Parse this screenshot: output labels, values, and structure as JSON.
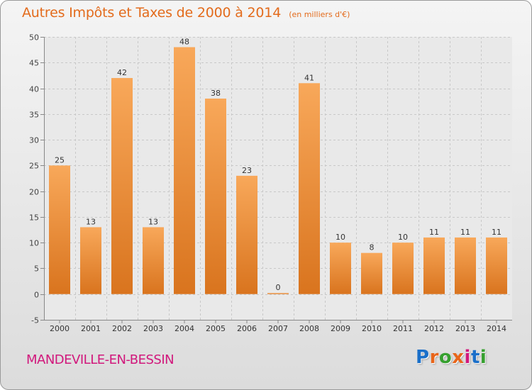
{
  "title": "Autres Impôts et Taxes de 2000 à 2014",
  "subtitle": "(en milliers d'€)",
  "town": "MANDEVILLE-EN-BESSIN",
  "logo": {
    "text": "Proxiti",
    "colors": [
      "#1a6fc9",
      "#e8651a",
      "#36a02f",
      "#e8651a",
      "#d1187c",
      "#1a6fc9",
      "#36a02f"
    ]
  },
  "colors": {
    "title": "#e36b1c",
    "town": "#d1187c",
    "bar_light": "#f8a85a",
    "bar_dark": "#d9741e",
    "grid": "#c8c8c8"
  },
  "chart_data": {
    "type": "bar",
    "categories": [
      "2000",
      "2001",
      "2002",
      "2003",
      "2004",
      "2005",
      "2006",
      "2007",
      "2008",
      "2009",
      "2010",
      "2011",
      "2012",
      "2013",
      "2014"
    ],
    "values": [
      25,
      13,
      42,
      13,
      48,
      38,
      23,
      0,
      41,
      10,
      8,
      10,
      11,
      11,
      11
    ],
    "ylim": [
      -5,
      50
    ],
    "yticks": [
      -5,
      0,
      5,
      10,
      15,
      20,
      25,
      30,
      35,
      40,
      45,
      50
    ],
    "grid": true,
    "data_labels": true
  }
}
